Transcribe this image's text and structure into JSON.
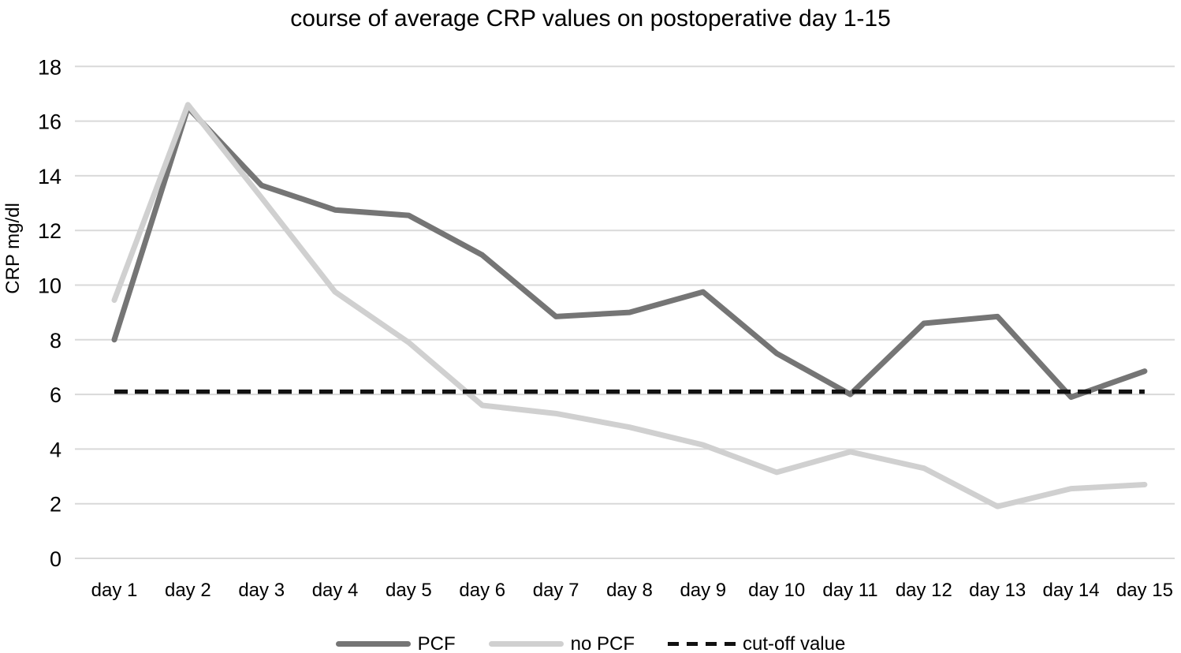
{
  "chart_data": {
    "type": "line",
    "title": "course of average CRP values on postoperative day 1-15",
    "ylabel": "CRP mg/dl",
    "ylim": [
      0,
      18
    ],
    "yticks": [
      0,
      2,
      4,
      6,
      8,
      10,
      12,
      14,
      16,
      18
    ],
    "grid": true,
    "legend_position": "bottom",
    "gridline_color": "#d9d9d9",
    "background": "#ffffff",
    "categories": [
      "day 1",
      "day 2",
      "day 3",
      "day 4",
      "day 5",
      "day 6",
      "day 7",
      "day 8",
      "day 9",
      "day 10",
      "day 11",
      "day 12",
      "day 13",
      "day 14",
      "day 15"
    ],
    "series": [
      {
        "name": "PCF",
        "style": "solid",
        "color": "#757575",
        "values": [
          8.0,
          16.5,
          13.65,
          12.75,
          12.55,
          11.1,
          8.85,
          9.0,
          9.75,
          7.5,
          6.0,
          8.6,
          8.85,
          5.9,
          6.85
        ]
      },
      {
        "name": "no PCF",
        "style": "solid",
        "color": "#d0d0d0",
        "values": [
          9.45,
          16.6,
          13.2,
          9.75,
          7.9,
          5.6,
          5.3,
          4.8,
          4.15,
          3.15,
          3.9,
          3.3,
          1.9,
          2.55,
          2.7
        ]
      },
      {
        "name": "cut-off value",
        "style": "dashed",
        "color": "#111111",
        "values": [
          6.1,
          6.1,
          6.1,
          6.1,
          6.1,
          6.1,
          6.1,
          6.1,
          6.1,
          6.1,
          6.1,
          6.1,
          6.1,
          6.1,
          6.1
        ]
      }
    ]
  }
}
